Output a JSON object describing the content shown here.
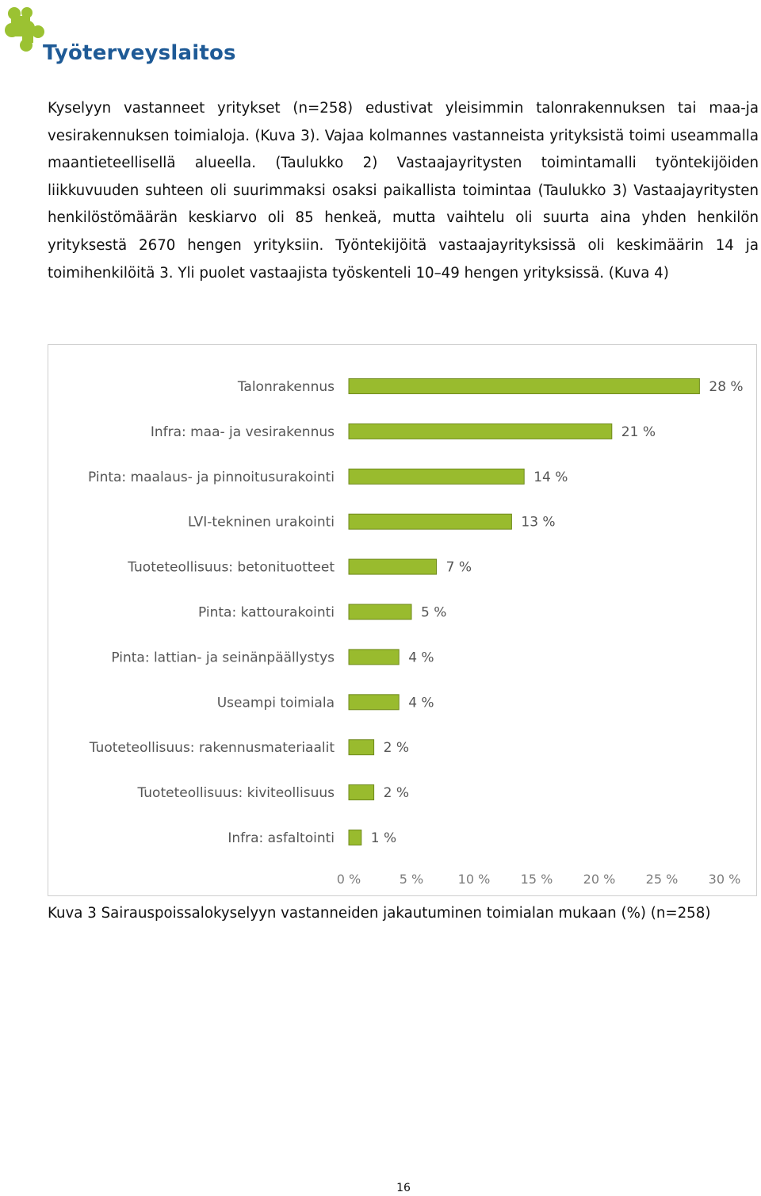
{
  "header": {
    "logo_text": "Työterveyslaitos",
    "logo_colors": {
      "leaf": "#9bc232",
      "text": "#1e5a96"
    }
  },
  "body_text": "Kyselyyn vastanneet yritykset (n=258) edustivat yleisimmin talonrakennuksen tai maa-ja vesirakennuksen toimialoja. (Kuva 3). Vajaa kolmannes vastanneista yrityksistä toimi useammalla maantieteellisellä alueella. (Taulukko 2) Vastaajayritysten toimintamalli työntekijöiden liikkuvuuden suhteen oli suurimmaksi osaksi paikallista toimintaa (Taulukko 3) Vastaajayritysten henkilöstömäärän keskiarvo oli 85 henkeä, mutta vaihtelu oli suurta aina yhden henkilön yrityksestä 2670 hengen yrityksiin. Työntekijöitä vastaajayrityksissä oli keskimäärin 14 ja toimihenkilöitä 3. Yli puolet vastaajista työskenteli 10–49 hengen yrityksissä. (Kuva 4)",
  "chart_data": {
    "type": "bar",
    "orientation": "horizontal",
    "categories": [
      "Talonrakennus",
      "Infra: maa- ja vesirakennus",
      "Pinta: maalaus- ja pinnoitusurakointi",
      "LVI-tekninen urakointi",
      "Tuoteteollisuus: betonituotteet",
      "Pinta: kattourakointi",
      "Pinta: lattian- ja seinänpäällystys",
      "Useampi toimiala",
      "Tuoteteollisuus: rakennusmateriaalit",
      "Tuoteteollisuus: kiviteollisuus",
      "Infra: asfaltointi"
    ],
    "values": [
      28,
      21,
      14,
      13,
      7,
      5,
      4,
      4,
      2,
      2,
      1
    ],
    "value_labels": [
      "28 %",
      "21 %",
      "14 %",
      "13 %",
      "7 %",
      "5 %",
      "4 %",
      "4 %",
      "2 %",
      "2 %",
      "1 %"
    ],
    "xticks": [
      "0 %",
      "5 %",
      "10 %",
      "15 %",
      "20 %",
      "25 %",
      "30 %"
    ],
    "xlim": [
      0,
      30
    ],
    "grid": false,
    "bar_color": "#99bb2e",
    "bar_edge_color": "#6f8a1c",
    "title": "",
    "xlabel": "",
    "ylabel": ""
  },
  "caption": "Kuva 3 Sairauspoissalokyselyyn vastanneiden jakautuminen toimialan mukaan (%) (n=258)",
  "page_number": "16"
}
